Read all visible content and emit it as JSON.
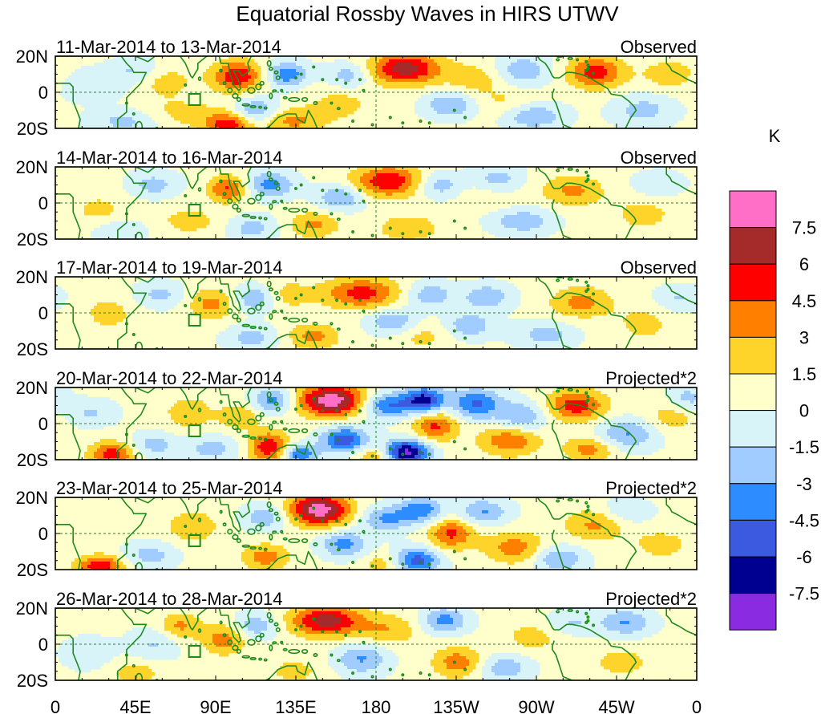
{
  "title": "Equatorial Rossby Waves in HIRS UTWV",
  "chart_data": {
    "type": "heatmap",
    "title": "Equatorial Rossby Waves in HIRS UTWV",
    "x_tick_labels": [
      "0",
      "45E",
      "90E",
      "135E",
      "180",
      "135W",
      "90W",
      "45W",
      "0"
    ],
    "x_ticks_deg": [
      0,
      45,
      90,
      135,
      180,
      225,
      270,
      315,
      360
    ],
    "y_tick_labels": [
      "20N",
      "0",
      "20S"
    ],
    "y_ticks_deg": [
      20,
      0,
      -20
    ],
    "xlim": [
      0,
      360
    ],
    "ylim": [
      -20,
      20
    ],
    "colorbar": {
      "units": "K",
      "levels": [
        "7.5",
        "6",
        "4.5",
        "3",
        "1.5",
        "0",
        "-1.5",
        "-3",
        "-4.5",
        "-6",
        "-7.5"
      ],
      "colors": [
        "#ff6ec7",
        "#a52a2a",
        "#ff0000",
        "#ff7f00",
        "#ffd42a",
        "#ffffcc",
        "#d8f4f8",
        "#a0ccff",
        "#2d8cff",
        "#3c5ae0",
        "#000090",
        "#8a2be2"
      ]
    },
    "panels": [
      {
        "date_range": "11-Mar-2014 to 13-Mar-2014",
        "kind": "Observed",
        "blobs": [
          {
            "lon": 196,
            "lat": 13,
            "amp": 6.5,
            "wlon": 14,
            "wlat": 6
          },
          {
            "lon": 102,
            "lat": 9,
            "amp": 5.5,
            "wlon": 10,
            "wlat": 6
          },
          {
            "lon": 97,
            "lat": -18,
            "amp": 5,
            "wlon": 9,
            "wlat": 5
          },
          {
            "lon": 303,
            "lat": 11,
            "amp": 5,
            "wlon": 11,
            "wlat": 6
          },
          {
            "lon": 132,
            "lat": -16,
            "amp": 3,
            "wlon": 12,
            "wlat": 5
          },
          {
            "lon": 62,
            "lat": 6,
            "amp": 2,
            "wlon": 10,
            "wlat": 6
          },
          {
            "lon": 236,
            "lat": 8,
            "amp": 2,
            "wlon": 12,
            "wlat": 6
          },
          {
            "lon": 70,
            "lat": -12,
            "amp": 1.7,
            "wlon": 18,
            "wlat": 6
          },
          {
            "lon": 160,
            "lat": -6,
            "amp": 1.6,
            "wlon": 14,
            "wlat": 8
          },
          {
            "lon": 345,
            "lat": 10,
            "amp": 2,
            "wlon": 12,
            "wlat": 6
          },
          {
            "lon": 253,
            "lat": -6,
            "amp": 1.5,
            "wlon": 14,
            "wlat": 6
          },
          {
            "lon": 130,
            "lat": 10,
            "amp": -4.5,
            "wlon": 8,
            "wlat": 5
          },
          {
            "lon": 112,
            "lat": -10,
            "amp": -3.5,
            "wlon": 9,
            "wlat": 5
          },
          {
            "lon": 165,
            "lat": 9,
            "amp": -3,
            "wlon": 9,
            "wlat": 5
          },
          {
            "lon": 222,
            "lat": -7,
            "amp": -3.5,
            "wlon": 10,
            "wlat": 5
          },
          {
            "lon": 268,
            "lat": -13,
            "amp": -3.5,
            "wlon": 12,
            "wlat": 5
          },
          {
            "lon": 262,
            "lat": 12,
            "amp": -3,
            "wlon": 11,
            "wlat": 6
          },
          {
            "lon": 40,
            "lat": -16,
            "amp": -2.5,
            "wlon": 14,
            "wlat": 5
          },
          {
            "lon": 45,
            "lat": 12,
            "amp": -2,
            "wlon": 10,
            "wlat": 5
          },
          {
            "lon": 330,
            "lat": -10,
            "amp": -2.5,
            "wlon": 12,
            "wlat": 6
          },
          {
            "lon": 20,
            "lat": 4,
            "amp": -1.8,
            "wlon": 12,
            "wlat": 6
          }
        ]
      },
      {
        "date_range": "14-Mar-2014 to 16-Mar-2014",
        "kind": "Observed",
        "blobs": [
          {
            "lon": 187,
            "lat": 12,
            "amp": 5.5,
            "wlon": 14,
            "wlat": 6
          },
          {
            "lon": 97,
            "lat": 8,
            "amp": 4.5,
            "wlon": 8,
            "wlat": 5
          },
          {
            "lon": 290,
            "lat": 7,
            "amp": 3,
            "wlon": 12,
            "wlat": 6
          },
          {
            "lon": 145,
            "lat": -12,
            "amp": 3,
            "wlon": 10,
            "wlat": 5
          },
          {
            "lon": 198,
            "lat": -14,
            "amp": 2.5,
            "wlon": 12,
            "wlat": 5
          },
          {
            "lon": 75,
            "lat": -10,
            "amp": 1.7,
            "wlon": 14,
            "wlat": 6
          },
          {
            "lon": 245,
            "lat": 5,
            "amp": 1.6,
            "wlon": 12,
            "wlat": 6
          },
          {
            "lon": 330,
            "lat": -6,
            "amp": 1.6,
            "wlon": 14,
            "wlat": 8
          },
          {
            "lon": 25,
            "lat": -5,
            "amp": 1.6,
            "wlon": 12,
            "wlat": 8
          },
          {
            "lon": 120,
            "lat": 10,
            "amp": -4,
            "wlon": 10,
            "wlat": 5
          },
          {
            "lon": 160,
            "lat": 3,
            "amp": -3.5,
            "wlon": 9,
            "wlat": 5
          },
          {
            "lon": 215,
            "lat": 10,
            "amp": -3,
            "wlon": 9,
            "wlat": 5
          },
          {
            "lon": 248,
            "lat": 12,
            "amp": -3,
            "wlon": 10,
            "wlat": 6
          },
          {
            "lon": 262,
            "lat": -10,
            "amp": -3,
            "wlon": 12,
            "wlat": 5
          },
          {
            "lon": 55,
            "lat": 10,
            "amp": -2.5,
            "wlon": 10,
            "wlat": 5
          },
          {
            "lon": 110,
            "lat": -14,
            "amp": -2.5,
            "wlon": 10,
            "wlat": 5
          },
          {
            "lon": 35,
            "lat": -15,
            "amp": -2,
            "wlon": 12,
            "wlat": 5
          },
          {
            "lon": 338,
            "lat": 10,
            "amp": -2,
            "wlon": 10,
            "wlat": 5
          }
        ]
      },
      {
        "date_range": "17-Mar-2014 to 19-Mar-2014",
        "kind": "Observed",
        "blobs": [
          {
            "lon": 172,
            "lat": 11,
            "amp": 4.8,
            "wlon": 15,
            "wlat": 6
          },
          {
            "lon": 88,
            "lat": 5,
            "amp": 3.2,
            "wlon": 9,
            "wlat": 6
          },
          {
            "lon": 295,
            "lat": 6,
            "amp": 3.2,
            "wlon": 12,
            "wlat": 6
          },
          {
            "lon": 145,
            "lat": -13,
            "amp": 3.2,
            "wlon": 10,
            "wlat": 5
          },
          {
            "lon": 130,
            "lat": 10,
            "amp": 1.8,
            "wlon": 10,
            "wlat": 6
          },
          {
            "lon": 205,
            "lat": -12,
            "amp": 1.8,
            "wlon": 12,
            "wlat": 6
          },
          {
            "lon": 30,
            "lat": 0,
            "amp": 1.6,
            "wlon": 12,
            "wlat": 8
          },
          {
            "lon": 330,
            "lat": -6,
            "amp": 1.6,
            "wlon": 12,
            "wlat": 8
          },
          {
            "lon": 112,
            "lat": 8,
            "amp": -3.5,
            "wlon": 8,
            "wlat": 5
          },
          {
            "lon": 190,
            "lat": -5,
            "amp": -3.5,
            "wlon": 10,
            "wlat": 5
          },
          {
            "lon": 210,
            "lat": 10,
            "amp": -3,
            "wlon": 9,
            "wlat": 5
          },
          {
            "lon": 242,
            "lat": 9,
            "amp": -3,
            "wlon": 10,
            "wlat": 5
          },
          {
            "lon": 232,
            "lat": -7,
            "amp": -3,
            "wlon": 10,
            "wlat": 5
          },
          {
            "lon": 275,
            "lat": -12,
            "amp": -2.5,
            "wlon": 12,
            "wlat": 5
          },
          {
            "lon": 58,
            "lat": 10,
            "amp": -2.3,
            "wlon": 10,
            "wlat": 5
          },
          {
            "lon": 110,
            "lat": -14,
            "amp": -2.5,
            "wlon": 10,
            "wlat": 5
          },
          {
            "lon": 350,
            "lat": 8,
            "amp": -2,
            "wlon": 10,
            "wlat": 5
          }
        ]
      },
      {
        "date_range": "20-Mar-2014 to 22-Mar-2014",
        "kind": "Projected*2",
        "blobs": [
          {
            "lon": 155,
            "lat": 13,
            "amp": 8.3,
            "wlon": 13,
            "wlat": 6
          },
          {
            "lon": 120,
            "lat": -13,
            "amp": 5.5,
            "wlon": 8,
            "wlat": 6
          },
          {
            "lon": 292,
            "lat": 10,
            "amp": 5,
            "wlon": 12,
            "wlat": 6
          },
          {
            "lon": 32,
            "lat": -17,
            "amp": 5,
            "wlon": 9,
            "wlat": 5
          },
          {
            "lon": 213,
            "lat": -1,
            "amp": 4.5,
            "wlon": 9,
            "wlat": 6
          },
          {
            "lon": 255,
            "lat": -9,
            "amp": 4,
            "wlon": 12,
            "wlat": 6
          },
          {
            "lon": 300,
            "lat": -14,
            "amp": 3.5,
            "wlon": 10,
            "wlat": 5
          },
          {
            "lon": 75,
            "lat": 6,
            "amp": 2.5,
            "wlon": 9,
            "wlat": 6
          },
          {
            "lon": 103,
            "lat": 4,
            "amp": 2.5,
            "wlon": 8,
            "wlat": 5
          },
          {
            "lon": 180,
            "lat": -18,
            "amp": 3,
            "wlon": 8,
            "wlat": 4
          },
          {
            "lon": 346,
            "lat": 4,
            "amp": 2,
            "wlon": 10,
            "wlat": 6
          },
          {
            "lon": 186,
            "lat": 10,
            "amp": -5,
            "wlon": 10,
            "wlat": 5
          },
          {
            "lon": 207,
            "lat": 13,
            "amp": -7,
            "wlon": 8,
            "wlat": 5
          },
          {
            "lon": 197,
            "lat": -16,
            "amp": -8.5,
            "wlon": 9,
            "wlat": 5
          },
          {
            "lon": 162,
            "lat": -9,
            "amp": -6,
            "wlon": 9,
            "wlat": 5
          },
          {
            "lon": 236,
            "lat": 11,
            "amp": -5,
            "wlon": 10,
            "wlat": 6
          },
          {
            "lon": 122,
            "lat": 13,
            "amp": -4,
            "wlon": 8,
            "wlat": 5
          },
          {
            "lon": 137,
            "lat": -17,
            "amp": -5,
            "wlon": 7,
            "wlat": 4
          },
          {
            "lon": 262,
            "lat": 4,
            "amp": -3.5,
            "wlon": 10,
            "wlat": 6
          },
          {
            "lon": 320,
            "lat": -6,
            "amp": -3.5,
            "wlon": 12,
            "wlat": 6
          },
          {
            "lon": 55,
            "lat": -12,
            "amp": -2.5,
            "wlon": 10,
            "wlat": 5
          },
          {
            "lon": 88,
            "lat": -14,
            "amp": -2.5,
            "wlon": 10,
            "wlat": 5
          },
          {
            "lon": 20,
            "lat": 6,
            "amp": -2,
            "wlon": 10,
            "wlat": 5
          },
          {
            "lon": 355,
            "lat": 14,
            "amp": -2.5,
            "wlon": 8,
            "wlat": 5
          }
        ]
      },
      {
        "date_range": "23-Mar-2014 to 25-Mar-2014",
        "kind": "Projected*2",
        "blobs": [
          {
            "lon": 148,
            "lat": 13,
            "amp": 8.2,
            "wlon": 12,
            "wlat": 6
          },
          {
            "lon": 222,
            "lat": 0,
            "amp": 4.5,
            "wlon": 9,
            "wlat": 6
          },
          {
            "lon": 258,
            "lat": -8,
            "amp": 3.5,
            "wlon": 12,
            "wlat": 6
          },
          {
            "lon": 25,
            "lat": -18,
            "amp": 5.5,
            "wlon": 9,
            "wlat": 4
          },
          {
            "lon": 303,
            "lat": 5,
            "amp": 3,
            "wlon": 12,
            "wlat": 6
          },
          {
            "lon": 118,
            "lat": -13,
            "amp": 3.5,
            "wlon": 9,
            "wlat": 5
          },
          {
            "lon": 77,
            "lat": 4,
            "amp": 2.5,
            "wlon": 10,
            "wlat": 6
          },
          {
            "lon": 183,
            "lat": -17,
            "amp": 2,
            "wlon": 8,
            "wlat": 4
          },
          {
            "lon": 340,
            "lat": -6,
            "amp": 1.8,
            "wlon": 12,
            "wlat": 6
          },
          {
            "lon": 185,
            "lat": 8,
            "amp": -3.5,
            "wlon": 10,
            "wlat": 5
          },
          {
            "lon": 205,
            "lat": 13,
            "amp": -4.5,
            "wlon": 9,
            "wlat": 5
          },
          {
            "lon": 203,
            "lat": -15,
            "amp": -5.5,
            "wlon": 9,
            "wlat": 5
          },
          {
            "lon": 162,
            "lat": -6,
            "amp": -4,
            "wlon": 9,
            "wlat": 5
          },
          {
            "lon": 240,
            "lat": 12,
            "amp": -3.5,
            "wlon": 10,
            "wlat": 5
          },
          {
            "lon": 282,
            "lat": -14,
            "amp": -3.5,
            "wlon": 10,
            "wlat": 5
          },
          {
            "lon": 118,
            "lat": 9,
            "amp": -3,
            "wlon": 9,
            "wlat": 5
          },
          {
            "lon": 53,
            "lat": -12,
            "amp": -2.5,
            "wlon": 10,
            "wlat": 5
          },
          {
            "lon": 320,
            "lat": 12,
            "amp": -2,
            "wlon": 10,
            "wlat": 5
          }
        ]
      },
      {
        "date_range": "26-Mar-2014 to 28-Mar-2014",
        "kind": "Projected*2",
        "blobs": [
          {
            "lon": 152,
            "lat": 13,
            "amp": 6.5,
            "wlon": 14,
            "wlat": 6
          },
          {
            "lon": 187,
            "lat": 8,
            "amp": 2.5,
            "wlon": 12,
            "wlat": 6
          },
          {
            "lon": 95,
            "lat": 3,
            "amp": 3.5,
            "wlon": 9,
            "wlat": 6
          },
          {
            "lon": 70,
            "lat": 10,
            "amp": 3,
            "wlon": 8,
            "wlat": 5
          },
          {
            "lon": 226,
            "lat": -10,
            "amp": 3.5,
            "wlon": 10,
            "wlat": 6
          },
          {
            "lon": 45,
            "lat": -16,
            "amp": 2,
            "wlon": 10,
            "wlat": 5
          },
          {
            "lon": 268,
            "lat": 4,
            "amp": 1.8,
            "wlon": 12,
            "wlat": 6
          },
          {
            "lon": 318,
            "lat": -10,
            "amp": 1.8,
            "wlon": 12,
            "wlat": 6
          },
          {
            "lon": 134,
            "lat": -15,
            "amp": 1.8,
            "wlon": 10,
            "wlat": 5
          },
          {
            "lon": 218,
            "lat": 13,
            "amp": -4,
            "wlon": 9,
            "wlat": 5
          },
          {
            "lon": 320,
            "lat": 12,
            "amp": -3.5,
            "wlon": 10,
            "wlat": 5
          },
          {
            "lon": 172,
            "lat": -8,
            "amp": -3.5,
            "wlon": 10,
            "wlat": 6
          },
          {
            "lon": 112,
            "lat": 10,
            "amp": -3,
            "wlon": 9,
            "wlat": 5
          },
          {
            "lon": 252,
            "lat": -13,
            "amp": -3,
            "wlon": 10,
            "wlat": 5
          },
          {
            "lon": 55,
            "lat": 0,
            "amp": -2,
            "wlon": 10,
            "wlat": 6
          },
          {
            "lon": 290,
            "lat": 12,
            "amp": -2,
            "wlon": 10,
            "wlat": 5
          },
          {
            "lon": 18,
            "lat": -5,
            "amp": -1.6,
            "wlon": 10,
            "wlat": 6
          }
        ]
      }
    ]
  }
}
